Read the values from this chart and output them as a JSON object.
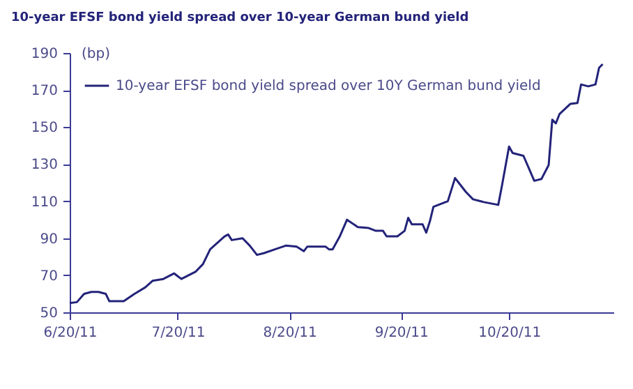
{
  "chart_data": {
    "type": "line",
    "title": "10-year EFSF bond yield spread over 10-year German bund yield",
    "ylabel": "(bp)",
    "x": [
      "2011-06-20",
      "2011-06-22",
      "2011-06-24",
      "2011-06-26",
      "2011-06-28",
      "2011-06-30",
      "2011-07-01",
      "2011-07-05",
      "2011-07-08",
      "2011-07-11",
      "2011-07-13",
      "2011-07-16",
      "2011-07-19",
      "2011-07-21",
      "2011-07-25",
      "2011-07-27",
      "2011-07-29",
      "2011-07-31",
      "2011-08-02",
      "2011-08-03",
      "2011-08-04",
      "2011-08-07",
      "2011-08-09",
      "2011-08-11",
      "2011-08-13",
      "2011-08-16",
      "2011-08-19",
      "2011-08-22",
      "2011-08-24",
      "2011-08-25",
      "2011-08-30",
      "2011-08-31",
      "2011-09-01",
      "2011-09-03",
      "2011-09-05",
      "2011-09-08",
      "2011-09-11",
      "2011-09-13",
      "2011-09-15",
      "2011-09-16",
      "2011-09-19",
      "2011-09-21",
      "2011-09-22",
      "2011-09-23",
      "2011-09-26",
      "2011-09-27",
      "2011-09-28",
      "2011-09-29",
      "2011-10-03",
      "2011-10-05",
      "2011-10-06",
      "2011-10-08",
      "2011-10-10",
      "2011-10-12",
      "2011-10-13",
      "2011-10-17",
      "2011-10-18",
      "2011-10-20",
      "2011-10-21",
      "2011-10-24",
      "2011-10-27",
      "2011-10-29",
      "2011-10-31",
      "2011-11-01",
      "2011-11-02",
      "2011-11-03",
      "2011-11-06",
      "2011-11-08",
      "2011-11-09",
      "2011-11-11",
      "2011-11-13",
      "2011-11-14",
      "2011-11-15"
    ],
    "series": [
      {
        "name": "10-year EFSF bond yield spread over 10Y German bund yield",
        "color": "#23237a",
        "values": [
          55,
          55.5,
          60,
          61,
          61,
          60,
          56,
          56,
          60,
          63.5,
          67,
          68,
          71,
          68,
          72,
          76,
          84,
          87.5,
          91,
          92,
          89,
          90,
          86,
          81,
          82,
          84,
          86,
          85.5,
          83,
          85.5,
          85.5,
          84,
          84,
          91,
          100,
          96,
          95.5,
          94,
          94,
          91,
          91,
          94,
          101,
          97.5,
          97.5,
          93,
          99,
          107,
          110,
          122.5,
          120,
          115,
          111,
          110,
          109.5,
          108,
          118,
          139.5,
          136,
          134.5,
          121,
          122,
          129.5,
          154,
          152,
          157,
          162.5,
          163,
          173,
          172,
          173,
          182,
          184
        ]
      }
    ],
    "xlim": [
      "2011-06-20",
      "2011-11-18"
    ],
    "xticks": [
      {
        "value": "2011-06-20",
        "label": "6/20/11"
      },
      {
        "value": "2011-07-20",
        "label": "7/20/11"
      },
      {
        "value": "2011-08-20",
        "label": "8/20/11"
      },
      {
        "value": "2011-09-20",
        "label": "9/20/11"
      },
      {
        "value": "2011-10-20",
        "label": "10/20/11"
      }
    ],
    "ylim": [
      50,
      190
    ],
    "yticks": [
      50,
      70,
      90,
      110,
      130,
      150,
      170,
      190
    ],
    "legend": "top left",
    "grid": false,
    "line_style": "solid",
    "marker": "none"
  }
}
